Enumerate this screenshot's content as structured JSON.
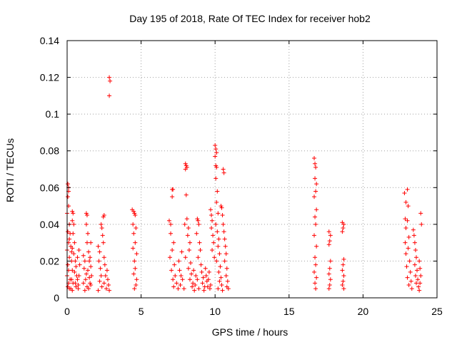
{
  "chart_data": {
    "type": "scatter",
    "title": "Day 195 of 2018, Rate Of TEC Index for receiver hob2",
    "xlabel": "GPS time / hours",
    "ylabel": "ROTI / TECUs",
    "xlim": [
      0,
      25
    ],
    "ylim": [
      0,
      0.14
    ],
    "xticks": [
      0,
      5,
      10,
      15,
      20,
      25
    ],
    "yticks": [
      0,
      0.02,
      0.04,
      0.06,
      0.08,
      0.1,
      0.12,
      0.14
    ],
    "xtick_labels": [
      "0",
      "5",
      "10",
      "15",
      "20",
      "25"
    ],
    "ytick_labels": [
      "0",
      "0.02",
      "0.04",
      "0.06",
      "0.08",
      "0.1",
      "0.12",
      "0.14"
    ],
    "grid": true,
    "marker": "+",
    "color": "#ff0000",
    "series": [
      {
        "name": "ROTI",
        "points": [
          [
            0.05,
            0.062
          ],
          [
            0.1,
            0.06
          ],
          [
            0.1,
            0.058
          ],
          [
            0.05,
            0.055
          ],
          [
            0.1,
            0.05
          ],
          [
            0.0,
            0.046
          ],
          [
            0.15,
            0.04
          ],
          [
            0.05,
            0.036
          ],
          [
            0.1,
            0.03
          ],
          [
            0.0,
            0.026
          ],
          [
            0.15,
            0.022
          ],
          [
            0.05,
            0.018
          ],
          [
            0.1,
            0.015
          ],
          [
            0.0,
            0.012
          ],
          [
            0.2,
            0.01
          ],
          [
            0.1,
            0.008
          ],
          [
            0.05,
            0.006
          ],
          [
            0.15,
            0.005
          ],
          [
            0.3,
            0.02
          ],
          [
            0.35,
            0.015
          ],
          [
            0.3,
            0.01
          ],
          [
            0.4,
            0.008
          ],
          [
            0.25,
            0.005
          ],
          [
            0.35,
            0.004
          ],
          [
            0.2,
            0.035
          ],
          [
            0.25,
            0.028
          ],
          [
            0.15,
            0.032
          ],
          [
            0.3,
            0.025
          ],
          [
            0.35,
            0.047
          ],
          [
            0.4,
            0.046
          ],
          [
            0.35,
            0.042
          ],
          [
            0.45,
            0.04
          ],
          [
            0.4,
            0.035
          ],
          [
            0.5,
            0.03
          ],
          [
            0.35,
            0.027
          ],
          [
            0.45,
            0.024
          ],
          [
            0.55,
            0.02
          ],
          [
            0.6,
            0.017
          ],
          [
            0.5,
            0.014
          ],
          [
            0.65,
            0.012
          ],
          [
            0.7,
            0.01
          ],
          [
            0.55,
            0.008
          ],
          [
            0.6,
            0.006
          ],
          [
            0.75,
            0.005
          ],
          [
            0.8,
            0.026
          ],
          [
            0.7,
            0.022
          ],
          [
            0.85,
            0.018
          ],
          [
            0.8,
            0.012
          ],
          [
            0.75,
            0.007
          ],
          [
            1.1,
            0.023
          ],
          [
            1.2,
            0.02
          ],
          [
            1.15,
            0.016
          ],
          [
            1.3,
            0.013
          ],
          [
            1.25,
            0.01
          ],
          [
            1.1,
            0.008
          ],
          [
            1.35,
            0.006
          ],
          [
            1.2,
            0.004
          ],
          [
            1.3,
            0.046
          ],
          [
            1.35,
            0.045
          ],
          [
            1.3,
            0.04
          ],
          [
            1.4,
            0.035
          ],
          [
            1.35,
            0.03
          ],
          [
            1.45,
            0.025
          ],
          [
            1.5,
            0.02
          ],
          [
            1.4,
            0.015
          ],
          [
            1.5,
            0.011
          ],
          [
            1.55,
            0.008
          ],
          [
            1.45,
            0.005
          ],
          [
            1.6,
            0.03
          ],
          [
            1.55,
            0.022
          ],
          [
            1.6,
            0.017
          ],
          [
            1.65,
            0.012
          ],
          [
            1.6,
            0.007
          ],
          [
            2.1,
            0.028
          ],
          [
            2.2,
            0.025
          ],
          [
            2.15,
            0.02
          ],
          [
            2.25,
            0.016
          ],
          [
            2.3,
            0.012
          ],
          [
            2.2,
            0.009
          ],
          [
            2.35,
            0.006
          ],
          [
            2.1,
            0.004
          ],
          [
            2.3,
            0.04
          ],
          [
            2.35,
            0.038
          ],
          [
            2.4,
            0.034
          ],
          [
            2.45,
            0.044
          ],
          [
            2.5,
            0.045
          ],
          [
            2.45,
            0.03
          ],
          [
            2.5,
            0.022
          ],
          [
            2.55,
            0.018
          ],
          [
            2.6,
            0.012
          ],
          [
            2.5,
            0.008
          ],
          [
            2.65,
            0.005
          ],
          [
            2.7,
            0.015
          ],
          [
            2.75,
            0.01
          ],
          [
            2.8,
            0.007
          ],
          [
            2.85,
            0.004
          ],
          [
            2.85,
            0.12
          ],
          [
            2.9,
            0.118
          ],
          [
            2.85,
            0.11
          ],
          [
            4.4,
            0.048
          ],
          [
            4.5,
            0.047
          ],
          [
            4.55,
            0.046
          ],
          [
            4.6,
            0.045
          ],
          [
            4.45,
            0.04
          ],
          [
            4.65,
            0.038
          ],
          [
            4.5,
            0.035
          ],
          [
            4.6,
            0.03
          ],
          [
            4.45,
            0.027
          ],
          [
            4.7,
            0.024
          ],
          [
            4.55,
            0.02
          ],
          [
            4.6,
            0.016
          ],
          [
            4.5,
            0.013
          ],
          [
            4.7,
            0.01
          ],
          [
            4.65,
            0.007
          ],
          [
            4.55,
            0.005
          ],
          [
            6.9,
            0.042
          ],
          [
            7.0,
            0.04
          ],
          [
            7.1,
            0.059
          ],
          [
            7.15,
            0.059
          ],
          [
            7.1,
            0.055
          ],
          [
            7.0,
            0.035
          ],
          [
            7.2,
            0.03
          ],
          [
            7.1,
            0.026
          ],
          [
            6.95,
            0.022
          ],
          [
            7.25,
            0.018
          ],
          [
            7.05,
            0.015
          ],
          [
            7.3,
            0.012
          ],
          [
            7.15,
            0.01
          ],
          [
            7.4,
            0.008
          ],
          [
            7.2,
            0.006
          ],
          [
            7.5,
            0.005
          ],
          [
            7.6,
            0.015
          ],
          [
            7.7,
            0.012
          ],
          [
            7.8,
            0.01
          ],
          [
            7.65,
            0.007
          ],
          [
            7.9,
            0.005
          ],
          [
            7.55,
            0.02
          ],
          [
            7.75,
            0.025
          ],
          [
            8.0,
            0.073
          ],
          [
            8.05,
            0.072
          ],
          [
            8.1,
            0.071
          ],
          [
            8.0,
            0.07
          ],
          [
            8.05,
            0.056
          ],
          [
            8.1,
            0.043
          ],
          [
            7.95,
            0.04
          ],
          [
            8.2,
            0.038
          ],
          [
            8.15,
            0.034
          ],
          [
            8.3,
            0.03
          ],
          [
            8.25,
            0.026
          ],
          [
            8.0,
            0.022
          ],
          [
            8.35,
            0.019
          ],
          [
            8.2,
            0.016
          ],
          [
            8.4,
            0.013
          ],
          [
            8.3,
            0.01
          ],
          [
            8.5,
            0.008
          ],
          [
            8.45,
            0.006
          ],
          [
            8.6,
            0.004
          ],
          [
            8.55,
            0.015
          ],
          [
            8.7,
            0.012
          ],
          [
            8.8,
            0.01
          ],
          [
            8.65,
            0.007
          ],
          [
            8.9,
            0.005
          ],
          [
            8.8,
            0.043
          ],
          [
            8.85,
            0.042
          ],
          [
            8.9,
            0.04
          ],
          [
            8.75,
            0.035
          ],
          [
            8.95,
            0.03
          ],
          [
            9.0,
            0.026
          ],
          [
            8.85,
            0.022
          ],
          [
            9.05,
            0.018
          ],
          [
            9.1,
            0.014
          ],
          [
            9.2,
            0.011
          ],
          [
            9.15,
            0.008
          ],
          [
            9.3,
            0.006
          ],
          [
            9.25,
            0.004
          ],
          [
            9.35,
            0.016
          ],
          [
            9.4,
            0.012
          ],
          [
            9.45,
            0.009
          ],
          [
            9.5,
            0.006
          ],
          [
            9.6,
            0.014
          ],
          [
            9.55,
            0.01
          ],
          [
            9.7,
            0.007
          ],
          [
            9.65,
            0.005
          ],
          [
            9.7,
            0.048
          ],
          [
            9.75,
            0.045
          ],
          [
            9.8,
            0.042
          ],
          [
            9.75,
            0.038
          ],
          [
            9.85,
            0.034
          ],
          [
            9.9,
            0.03
          ],
          [
            9.8,
            0.026
          ],
          [
            9.95,
            0.022
          ],
          [
            10.0,
            0.083
          ],
          [
            10.05,
            0.081
          ],
          [
            10.1,
            0.079
          ],
          [
            10.0,
            0.077
          ],
          [
            10.05,
            0.072
          ],
          [
            10.1,
            0.071
          ],
          [
            10.05,
            0.065
          ],
          [
            10.15,
            0.058
          ],
          [
            10.1,
            0.052
          ],
          [
            10.2,
            0.046
          ],
          [
            10.05,
            0.04
          ],
          [
            10.15,
            0.036
          ],
          [
            10.25,
            0.032
          ],
          [
            10.2,
            0.028
          ],
          [
            10.3,
            0.024
          ],
          [
            10.1,
            0.02
          ],
          [
            10.35,
            0.017
          ],
          [
            10.25,
            0.014
          ],
          [
            10.4,
            0.011
          ],
          [
            10.3,
            0.009
          ],
          [
            10.45,
            0.007
          ],
          [
            10.2,
            0.005
          ],
          [
            10.5,
            0.004
          ],
          [
            10.4,
            0.05
          ],
          [
            10.45,
            0.049
          ],
          [
            10.5,
            0.045
          ],
          [
            10.55,
            0.07
          ],
          [
            10.6,
            0.068
          ],
          [
            10.55,
            0.04
          ],
          [
            10.6,
            0.036
          ],
          [
            10.65,
            0.032
          ],
          [
            10.7,
            0.028
          ],
          [
            10.75,
            0.024
          ],
          [
            10.65,
            0.02
          ],
          [
            10.8,
            0.016
          ],
          [
            10.75,
            0.012
          ],
          [
            10.85,
            0.009
          ],
          [
            10.8,
            0.006
          ],
          [
            10.9,
            0.005
          ],
          [
            16.7,
            0.076
          ],
          [
            16.75,
            0.073
          ],
          [
            16.8,
            0.071
          ],
          [
            16.75,
            0.065
          ],
          [
            16.85,
            0.062
          ],
          [
            16.8,
            0.058
          ],
          [
            16.7,
            0.055
          ],
          [
            16.85,
            0.048
          ],
          [
            16.75,
            0.044
          ],
          [
            16.8,
            0.04
          ],
          [
            16.7,
            0.034
          ],
          [
            16.85,
            0.028
          ],
          [
            16.75,
            0.022
          ],
          [
            16.8,
            0.018
          ],
          [
            16.7,
            0.014
          ],
          [
            16.85,
            0.011
          ],
          [
            16.75,
            0.008
          ],
          [
            16.8,
            0.005
          ],
          [
            17.7,
            0.036
          ],
          [
            17.8,
            0.034
          ],
          [
            17.75,
            0.031
          ],
          [
            17.7,
            0.029
          ],
          [
            17.8,
            0.02
          ],
          [
            17.75,
            0.016
          ],
          [
            17.7,
            0.013
          ],
          [
            17.8,
            0.01
          ],
          [
            17.75,
            0.007
          ],
          [
            17.7,
            0.005
          ],
          [
            18.6,
            0.041
          ],
          [
            18.7,
            0.04
          ],
          [
            18.65,
            0.038
          ],
          [
            18.6,
            0.036
          ],
          [
            18.7,
            0.021
          ],
          [
            18.65,
            0.018
          ],
          [
            18.6,
            0.015
          ],
          [
            18.7,
            0.012
          ],
          [
            18.65,
            0.009
          ],
          [
            18.6,
            0.007
          ],
          [
            18.7,
            0.005
          ],
          [
            22.8,
            0.057
          ],
          [
            23.0,
            0.059
          ],
          [
            22.9,
            0.052
          ],
          [
            23.05,
            0.05
          ],
          [
            22.85,
            0.043
          ],
          [
            23.0,
            0.042
          ],
          [
            22.9,
            0.038
          ],
          [
            23.1,
            0.033
          ],
          [
            22.85,
            0.03
          ],
          [
            23.05,
            0.027
          ],
          [
            22.9,
            0.024
          ],
          [
            23.15,
            0.02
          ],
          [
            22.95,
            0.017
          ],
          [
            23.2,
            0.014
          ],
          [
            23.0,
            0.011
          ],
          [
            23.25,
            0.009
          ],
          [
            23.1,
            0.007
          ],
          [
            23.3,
            0.005
          ],
          [
            23.4,
            0.037
          ],
          [
            23.45,
            0.034
          ],
          [
            23.5,
            0.03
          ],
          [
            23.55,
            0.026
          ],
          [
            23.6,
            0.022
          ],
          [
            23.5,
            0.018
          ],
          [
            23.65,
            0.015
          ],
          [
            23.55,
            0.012
          ],
          [
            23.7,
            0.01
          ],
          [
            23.6,
            0.008
          ],
          [
            23.75,
            0.006
          ],
          [
            23.8,
            0.004
          ],
          [
            23.9,
            0.046
          ],
          [
            23.95,
            0.04
          ],
          [
            23.8,
            0.02
          ],
          [
            23.85,
            0.016
          ],
          [
            23.9,
            0.012
          ],
          [
            23.85,
            0.008
          ]
        ]
      }
    ]
  }
}
